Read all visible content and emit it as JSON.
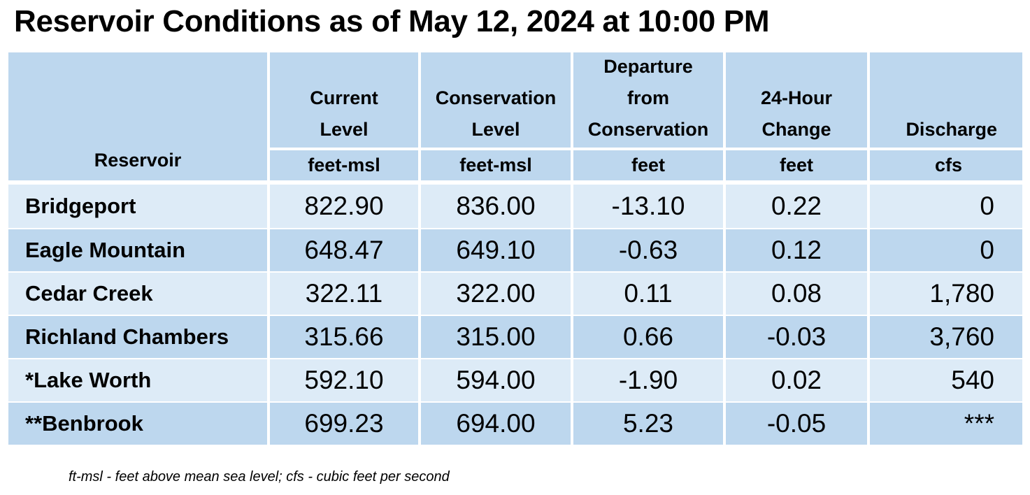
{
  "title": "Reservoir Conditions as of May 12, 2024 at 10:00 PM",
  "columns": [
    {
      "name": "Reservoir",
      "lines": [
        "Reservoir"
      ],
      "unit": ""
    },
    {
      "name": "Current Level",
      "lines": [
        "Current",
        "Level"
      ],
      "unit": "feet-msl"
    },
    {
      "name": "Conservation Level",
      "lines": [
        "Conservation",
        "Level"
      ],
      "unit": "feet-msl"
    },
    {
      "name": "Departure from Conservation",
      "lines": [
        "Departure",
        "from",
        "Conservation"
      ],
      "unit": "feet"
    },
    {
      "name": "24-Hour Change",
      "lines": [
        "24-Hour",
        "Change"
      ],
      "unit": "feet"
    },
    {
      "name": "Discharge",
      "lines": [
        "Discharge"
      ],
      "unit": "cfs"
    }
  ],
  "rows": [
    {
      "reservoir": "Bridgeport",
      "current": "822.90",
      "conservation": "836.00",
      "departure": "-13.10",
      "change": "0.22",
      "discharge": "0"
    },
    {
      "reservoir": "Eagle Mountain",
      "current": "648.47",
      "conservation": "649.10",
      "departure": "-0.63",
      "change": "0.12",
      "discharge": "0"
    },
    {
      "reservoir": "Cedar Creek",
      "current": "322.11",
      "conservation": "322.00",
      "departure": "0.11",
      "change": "0.08",
      "discharge": "1,780"
    },
    {
      "reservoir": "Richland Chambers",
      "current": "315.66",
      "conservation": "315.00",
      "departure": "0.66",
      "change": "-0.03",
      "discharge": "3,760"
    },
    {
      "reservoir": "*Lake Worth",
      "current": "592.10",
      "conservation": "594.00",
      "departure": "-1.90",
      "change": "0.02",
      "discharge": "540"
    },
    {
      "reservoir": "**Benbrook",
      "current": "699.23",
      "conservation": "694.00",
      "departure": "5.23",
      "change": "-0.05",
      "discharge": "***"
    }
  ],
  "footnote": "ft-msl - feet above mean sea level; cfs - cubic feet per second",
  "colors": {
    "header_bg": "#bdd7ee",
    "row_light": "#ddebf7",
    "row_dark": "#bdd7ee",
    "gridline": "#ffffff"
  }
}
